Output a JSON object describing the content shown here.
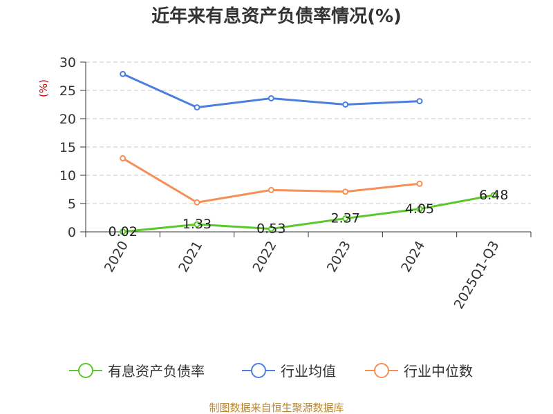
{
  "chart_data": {
    "type": "line",
    "title": "近年来有息资产负债率情况(%)",
    "ylabel": "(%)",
    "xlabel": "",
    "categories": [
      "2020",
      "2021",
      "2022",
      "2023",
      "2024",
      "2025Q1-Q3"
    ],
    "ylim": [
      0,
      30
    ],
    "yticks": [
      0,
      5,
      10,
      15,
      20,
      25,
      30
    ],
    "grid": true,
    "legend_position": "bottom",
    "series": [
      {
        "name": "有息资产负债率",
        "color": "#5ac72a",
        "values": [
          0.02,
          1.33,
          0.53,
          2.37,
          4.05,
          6.48
        ],
        "labels": [
          "0.02",
          "1.33",
          "0.53",
          "2.37",
          "4.05",
          "6.48"
        ]
      },
      {
        "name": "行业均值",
        "color": "#4a7fdc",
        "values": [
          27.9,
          22.0,
          23.6,
          22.5,
          23.1,
          null
        ]
      },
      {
        "name": "行业中位数",
        "color": "#f58f55",
        "values": [
          13.0,
          5.2,
          7.4,
          7.1,
          8.5,
          null
        ]
      }
    ],
    "source": "制图数据来自恒生聚源数据库"
  }
}
